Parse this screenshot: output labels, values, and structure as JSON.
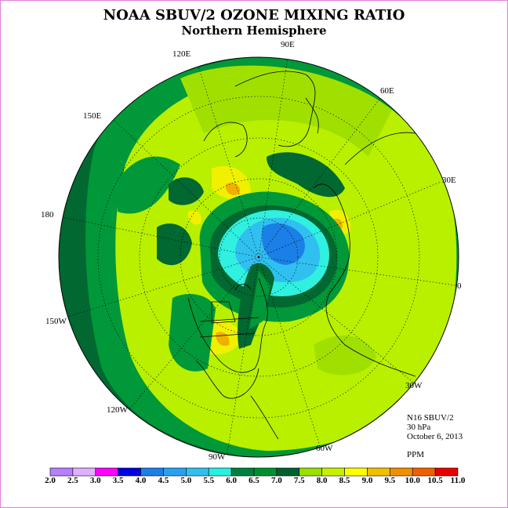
{
  "title": "NOAA SBUV/2 OZONE MIXING RATIO",
  "subtitle": "Northern Hemisphere",
  "longitudes": [
    {
      "text": "90E",
      "name": "lon-label-90e"
    },
    {
      "text": "60E",
      "name": "lon-label-60e"
    },
    {
      "text": "30E",
      "name": "lon-label-30e"
    },
    {
      "text": "0",
      "name": "lon-label-0"
    },
    {
      "text": "30W",
      "name": "lon-label-30w"
    },
    {
      "text": "60W",
      "name": "lon-label-60w"
    },
    {
      "text": "90W",
      "name": "lon-label-90w"
    },
    {
      "text": "120W",
      "name": "lon-label-120w"
    },
    {
      "text": "150W",
      "name": "lon-label-150w"
    },
    {
      "text": "180",
      "name": "lon-label-180"
    },
    {
      "text": "150E",
      "name": "lon-label-150e"
    },
    {
      "text": "120E",
      "name": "lon-label-120e"
    }
  ],
  "info": {
    "instrument": "N16 SBUV/2",
    "level": "30 hPa",
    "date": "October 6, 2013",
    "unit": "PPM"
  },
  "colorbar": {
    "ticks": [
      "2.0",
      "2.5",
      "3.0",
      "3.5",
      "4.0",
      "4.5",
      "5.0",
      "5.5",
      "6.0",
      "6.5",
      "7.0",
      "7.5",
      "8.0",
      "8.5",
      "9.0",
      "9.5",
      "10.0",
      "10.5",
      "11.0"
    ],
    "colors": [
      "#b87fff",
      "#e0b0ff",
      "#ff00ff",
      "#0000e6",
      "#1a7fe6",
      "#2aa0f0",
      "#30c0f0",
      "#28f0e0",
      "#008040",
      "#009030",
      "#006030",
      "#99e000",
      "#c8f000",
      "#ffff00",
      "#f0c000",
      "#f09000",
      "#f06000",
      "#e80000",
      "#906040"
    ]
  },
  "map_colors": {
    "ocean_outer": "#006830",
    "band_green": "#009838",
    "lime": "#b8f000",
    "yellowgreen": "#a0e000",
    "yellow": "#f0f000",
    "orange": "#f0b000",
    "cyan": "#30f0e0",
    "lightblue": "#30c0f0",
    "blue": "#1a7fe6"
  }
}
